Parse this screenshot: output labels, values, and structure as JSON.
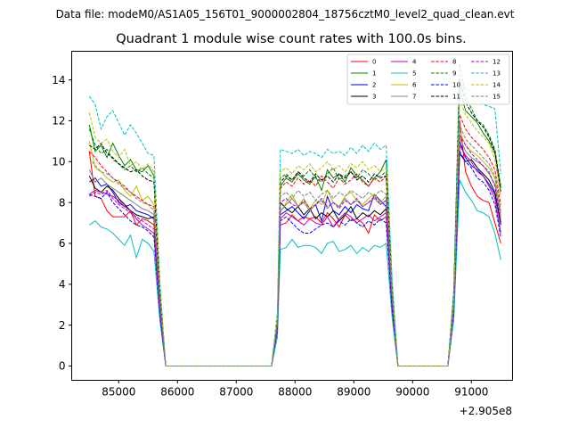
{
  "suptitle": "Data file: modeM0/AS1A05_156T01_9000002804_18756cztM0_level2_quad_clean.evt",
  "chart_data": {
    "type": "line",
    "title": "Quadrant 1 module wise count rates with 100.0s bins.",
    "xlabel": "",
    "ylabel": "",
    "x_offset_label": "+2.905e8",
    "xlim": [
      84200,
      91700
    ],
    "ylim": [
      -0.7,
      15.4
    ],
    "xticks": [
      85000,
      86000,
      87000,
      88000,
      89000,
      90000,
      91000
    ],
    "xtick_labels": [
      "85000",
      "86000",
      "87000",
      "88000",
      "89000",
      "90000",
      "91000"
    ],
    "yticks": [
      0,
      2,
      4,
      6,
      8,
      10,
      12,
      14
    ],
    "ytick_labels": [
      "0",
      "2",
      "4",
      "6",
      "8",
      "10",
      "12",
      "14"
    ],
    "legend_position": "top-right",
    "legend_columns": 4,
    "segments": [
      {
        "start": 84500,
        "end": 85600,
        "bins": 12,
        "ramp_down": [
          85700,
          85800
        ]
      },
      {
        "start": 87750,
        "end": 89550,
        "bins": 19,
        "ramp_up": [
          87600,
          87700
        ],
        "ramp_down": [
          89650,
          89750
        ]
      },
      {
        "start": 90800,
        "end": 91500,
        "bins": 8,
        "ramp_up": [
          90600,
          90700
        ]
      }
    ],
    "series": [
      {
        "name": "0",
        "color": "#ff0000",
        "dash": false,
        "seg1": [
          10.5,
          8.3,
          8.2,
          7.6,
          7.3,
          7.3,
          7.3,
          7.6,
          6.9,
          7.2,
          7.1,
          6.9
        ],
        "seg2": [
          6.9,
          7.0,
          7.4,
          7.1,
          7.3,
          7.2,
          7.3,
          7.0,
          7.5,
          7.2,
          6.8,
          7.4,
          7.1,
          7.2,
          7.0,
          6.5,
          7.4,
          7.1,
          7.3
        ],
        "seg3": [
          12.0,
          9.5,
          8.8,
          8.3,
          8.1,
          8.0,
          7.0,
          6.0
        ]
      },
      {
        "name": "1",
        "color": "#008000",
        "dash": false,
        "seg1": [
          11.8,
          10.5,
          10.8,
          10.2,
          10.9,
          10.3,
          9.8,
          10.1,
          9.6,
          9.5,
          9.8,
          9.3
        ],
        "seg2": [
          8.8,
          9.2,
          9.0,
          9.4,
          9.1,
          8.9,
          9.3,
          8.6,
          9.6,
          9.2,
          9.4,
          9.0,
          9.7,
          9.3,
          9.1,
          8.8,
          9.2,
          9.5,
          10.1
        ],
        "seg3": [
          13.5,
          12.5,
          12.2,
          11.9,
          11.4,
          11.0,
          10.4,
          8.7
        ]
      },
      {
        "name": "2",
        "color": "#0000ff",
        "dash": false,
        "seg1": [
          9.0,
          9.2,
          8.8,
          8.9,
          8.5,
          8.0,
          7.8,
          7.9,
          7.6,
          7.5,
          7.4,
          7.2
        ],
        "seg2": [
          7.4,
          7.6,
          7.8,
          7.5,
          7.2,
          7.6,
          7.9,
          7.1,
          8.3,
          7.6,
          7.4,
          7.8,
          7.5,
          7.9,
          7.7,
          7.6,
          8.4,
          8.1,
          7.8
        ],
        "seg3": [
          11.0,
          10.2,
          9.8,
          9.6,
          9.3,
          8.9,
          8.4,
          7.0
        ]
      },
      {
        "name": "3",
        "color": "#000000",
        "dash": false,
        "seg1": [
          9.3,
          8.7,
          8.5,
          8.8,
          8.6,
          8.2,
          7.9,
          7.6,
          7.4,
          7.3,
          7.2,
          7.3
        ],
        "seg2": [
          8.0,
          7.7,
          7.5,
          7.8,
          7.4,
          7.7,
          7.2,
          7.5,
          7.3,
          7.6,
          7.1,
          7.4,
          7.8,
          7.2,
          7.5,
          7.3,
          7.6,
          7.4,
          7.7
        ],
        "seg3": [
          10.4,
          10.0,
          10.1,
          9.7,
          9.4,
          9.1,
          8.5,
          6.9
        ]
      },
      {
        "name": "4",
        "color": "#bf00bf",
        "dash": false,
        "seg1": [
          8.4,
          8.6,
          8.5,
          8.4,
          8.3,
          8.1,
          7.8,
          7.6,
          7.2,
          6.9,
          6.7,
          6.5
        ],
        "seg2": [
          7.2,
          7.5,
          7.3,
          7.1,
          6.9,
          7.2,
          7.0,
          6.9,
          7.3,
          6.8,
          7.2,
          7.5,
          7.3,
          7.0,
          7.2,
          7.4,
          7.1,
          7.3,
          7.5
        ],
        "seg3": [
          10.8,
          10.3,
          10.0,
          9.5,
          9.3,
          8.8,
          8.2,
          6.5
        ]
      },
      {
        "name": "5",
        "color": "#00bfbf",
        "dash": false,
        "seg1": [
          6.9,
          7.1,
          6.8,
          6.7,
          6.5,
          6.2,
          5.9,
          6.4,
          5.3,
          6.2,
          6.0,
          5.6
        ],
        "seg2": [
          5.7,
          5.8,
          6.2,
          5.8,
          5.9,
          5.9,
          5.8,
          5.5,
          6.0,
          6.1,
          5.6,
          5.7,
          5.9,
          5.5,
          5.8,
          5.6,
          5.9,
          5.8,
          6.0
        ],
        "seg3": [
          9.1,
          8.5,
          8.1,
          7.6,
          7.5,
          7.3,
          6.5,
          5.2
        ]
      },
      {
        "name": "6",
        "color": "#bfbf00",
        "dash": false,
        "seg1": [
          11.0,
          9.7,
          9.5,
          9.2,
          9.0,
          9.1,
          8.6,
          8.3,
          8.8,
          8.1,
          8.3,
          7.9
        ],
        "seg2": [
          7.5,
          8.0,
          8.4,
          7.8,
          8.2,
          7.7,
          8.1,
          7.9,
          8.6,
          8.0,
          7.8,
          8.3,
          8.5,
          8.1,
          7.9,
          8.2,
          8.4,
          8.0,
          8.3
        ],
        "seg3": [
          11.5,
          10.8,
          10.5,
          10.3,
          10.0,
          9.7,
          9.2,
          7.5
        ]
      },
      {
        "name": "7",
        "color": "#808080",
        "dash": false,
        "seg1": [
          9.6,
          9.0,
          9.2,
          8.9,
          8.7,
          8.5,
          8.3,
          8.1,
          7.9,
          7.7,
          7.6,
          7.4
        ],
        "seg2": [
          7.6,
          7.9,
          8.2,
          7.8,
          8.0,
          7.6,
          7.9,
          8.1,
          7.7,
          8.0,
          7.8,
          8.2,
          7.9,
          8.1,
          7.8,
          8.0,
          8.2,
          7.9,
          8.1
        ],
        "seg3": [
          11.2,
          10.5,
          10.2,
          10.0,
          9.8,
          9.4,
          8.9,
          7.3
        ]
      },
      {
        "name": "8",
        "color": "#ff0000",
        "dash": true,
        "seg1": [
          10.5,
          10.2,
          9.8,
          9.5,
          9.2,
          9.0,
          8.8,
          8.5,
          8.3,
          8.1,
          7.9,
          7.8
        ],
        "seg2": [
          8.7,
          9.0,
          8.8,
          9.2,
          8.9,
          9.1,
          8.8,
          9.3,
          9.0,
          8.7,
          9.2,
          8.9,
          9.1,
          9.4,
          9.0,
          8.8,
          9.2,
          9.0,
          9.3
        ],
        "seg3": [
          12.3,
          11.6,
          11.2,
          10.9,
          10.6,
          10.2,
          9.6,
          7.9
        ]
      },
      {
        "name": "9",
        "color": "#008000",
        "dash": true,
        "seg1": [
          11.6,
          10.8,
          10.4,
          10.6,
          10.1,
          9.9,
          9.6,
          9.8,
          9.5,
          9.7,
          9.4,
          9.2
        ],
        "seg2": [
          9.2,
          9.4,
          9.1,
          9.5,
          9.3,
          9.6,
          9.2,
          9.0,
          9.4,
          9.7,
          9.1,
          9.3,
          9.5,
          9.2,
          9.6,
          9.4,
          9.1,
          9.3,
          9.5
        ],
        "seg3": [
          14.8,
          13.2,
          12.6,
          12.0,
          11.8,
          11.3,
          10.6,
          8.8
        ]
      },
      {
        "name": "10",
        "color": "#0000ff",
        "dash": true,
        "seg1": [
          8.4,
          8.3,
          8.2,
          8.5,
          8.0,
          7.7,
          7.4,
          7.1,
          6.9,
          6.8,
          6.6,
          6.3
        ],
        "seg2": [
          7.1,
          7.3,
          7.0,
          6.7,
          6.5,
          6.5,
          6.7,
          6.9,
          7.0,
          6.8,
          7.1,
          6.9,
          7.2,
          7.0,
          6.8,
          7.1,
          6.9,
          7.2,
          7.0
        ],
        "seg3": [
          10.5,
          10.0,
          9.7,
          9.2,
          9.0,
          8.6,
          7.9,
          6.3
        ]
      },
      {
        "name": "11",
        "color": "#000000",
        "dash": true,
        "seg1": [
          10.8,
          10.6,
          10.9,
          10.4,
          10.2,
          9.9,
          9.7,
          9.5,
          9.6,
          9.3,
          9.1,
          9.0
        ],
        "seg2": [
          9.0,
          9.3,
          9.1,
          9.5,
          9.2,
          9.0,
          9.4,
          9.1,
          9.3,
          9.0,
          9.4,
          9.2,
          9.5,
          9.1,
          9.3,
          9.0,
          9.4,
          9.2,
          9.3
        ],
        "seg3": [
          14.0,
          12.9,
          12.4,
          12.0,
          11.7,
          11.2,
          10.5,
          8.5
        ]
      },
      {
        "name": "12",
        "color": "#bf00bf",
        "dash": true,
        "seg1": [
          8.3,
          8.5,
          8.4,
          8.6,
          8.2,
          7.9,
          7.7,
          7.5,
          7.3,
          7.1,
          6.9,
          6.7
        ],
        "seg2": [
          8.0,
          8.2,
          7.9,
          7.8,
          8.1,
          7.7,
          7.9,
          8.2,
          7.8,
          8.0,
          7.7,
          8.1,
          7.9,
          8.2,
          7.8,
          8.0,
          8.3,
          7.9,
          8.1
        ],
        "seg3": [
          11.3,
          10.8,
          10.4,
          10.1,
          9.8,
          9.5,
          8.8,
          7.1
        ]
      },
      {
        "name": "13",
        "color": "#00bfbf",
        "dash": true,
        "seg1": [
          13.2,
          12.8,
          11.6,
          12.2,
          12.5,
          11.9,
          11.3,
          11.8,
          11.4,
          10.9,
          10.4,
          10.3
        ],
        "seg2": [
          10.6,
          10.5,
          10.4,
          10.6,
          10.3,
          10.5,
          10.4,
          10.2,
          10.6,
          10.4,
          10.5,
          10.3,
          10.7,
          10.4,
          10.8,
          10.5,
          10.9,
          10.6,
          10.8
        ],
        "seg3": [
          13.8,
          13.6,
          13.4,
          13.1,
          12.8,
          12.7,
          12.6,
          9.4
        ]
      },
      {
        "name": "14",
        "color": "#bfbf00",
        "dash": true,
        "seg1": [
          12.4,
          11.2,
          10.9,
          11.1,
          10.5,
          10.2,
          10.6,
          9.8,
          10.0,
          9.6,
          9.9,
          9.5
        ],
        "seg2": [
          9.5,
          9.7,
          9.4,
          9.8,
          9.6,
          9.9,
          9.5,
          9.7,
          10.0,
          9.6,
          9.8,
          9.5,
          9.9,
          9.7,
          10.0,
          9.6,
          9.8,
          9.5,
          9.7
        ],
        "seg3": [
          13.0,
          12.3,
          11.9,
          11.5,
          11.2,
          10.9,
          10.1,
          8.3
        ]
      },
      {
        "name": "15",
        "color": "#808080",
        "dash": true,
        "seg1": [
          10.2,
          9.8,
          9.5,
          9.4,
          9.2,
          8.9,
          8.7,
          8.5,
          8.2,
          8.0,
          7.9,
          7.6
        ],
        "seg2": [
          8.3,
          8.5,
          8.2,
          8.6,
          8.3,
          8.5,
          8.1,
          8.4,
          8.6,
          8.2,
          8.5,
          8.3,
          8.6,
          8.4,
          8.2,
          8.5,
          8.3,
          8.6,
          8.4
        ],
        "seg3": [
          11.8,
          11.1,
          10.8,
          10.5,
          10.2,
          9.9,
          9.3,
          7.6
        ]
      }
    ]
  }
}
